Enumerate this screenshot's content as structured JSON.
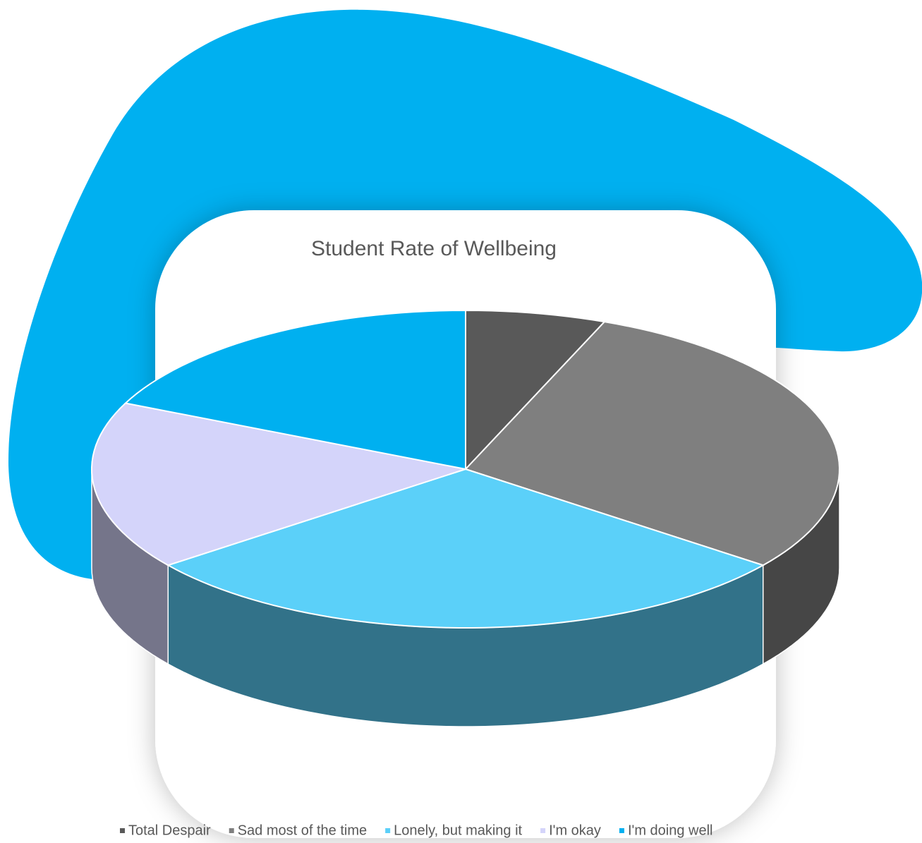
{
  "chart_data": {
    "type": "pie",
    "title": "Student Rate of Wellbeing",
    "categories": [
      "Total Despair",
      "Sad most of the time",
      "Lonely, but making it",
      "I'm okay",
      "I'm doing well"
    ],
    "values": [
      6,
      29,
      29,
      17,
      18
    ],
    "colors": [
      "#595959",
      "#7f7f7f",
      "#5bd0f9",
      "#d4d4fa",
      "#00b0f0"
    ],
    "legend": "bottom"
  }
}
